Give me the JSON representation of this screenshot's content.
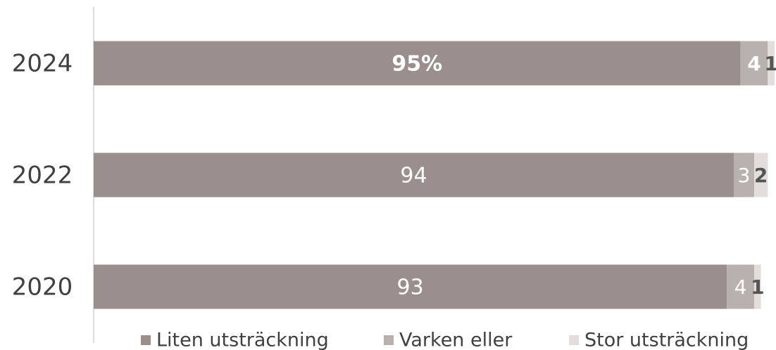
{
  "chart_data": {
    "type": "bar",
    "orientation": "horizontal",
    "stacked": true,
    "categories": [
      "2024",
      "2022",
      "2020"
    ],
    "series": [
      {
        "name": "Liten utsträckning",
        "color": "#9b8f8d",
        "values": [
          95,
          94,
          93
        ],
        "value_labels": [
          "95%",
          "94",
          "93"
        ]
      },
      {
        "name": "Varken eller",
        "color": "#b9b1ae",
        "values": [
          4,
          3,
          4
        ]
      },
      {
        "name": "Stor utsträckning",
        "color": "#e3dedc",
        "values": [
          1,
          2,
          1
        ]
      }
    ],
    "xlim": [
      0,
      100
    ],
    "legend": "bottom"
  }
}
